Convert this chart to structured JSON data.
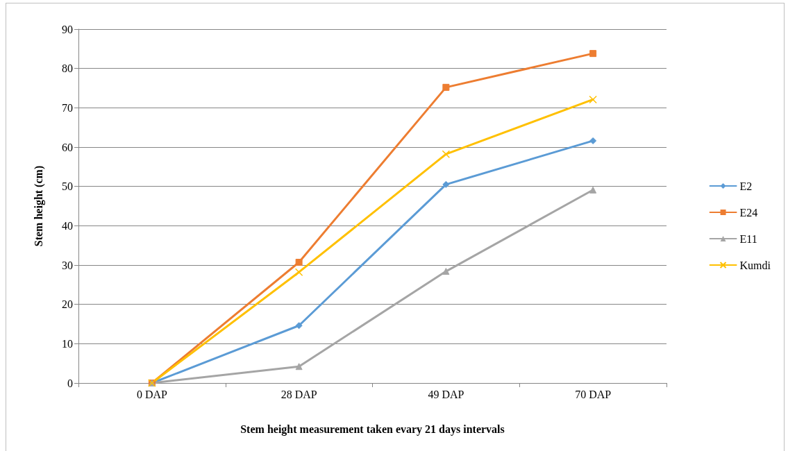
{
  "chart_data": {
    "type": "line",
    "xlabel": "Stem height measurement taken evary 21 days intervals",
    "ylabel": "Stem height (cm)",
    "categories": [
      "0 DAP",
      "28 DAP",
      "49 DAP",
      "70 DAP"
    ],
    "series": [
      {
        "name": "E2",
        "color": "#5b9bd5",
        "marker": "diamond",
        "values": [
          0,
          14.6,
          50.5,
          61.6
        ]
      },
      {
        "name": "E24",
        "color": "#ed7d31",
        "marker": "square",
        "values": [
          0,
          30.7,
          75.2,
          83.8
        ]
      },
      {
        "name": "E11",
        "color": "#a5a5a5",
        "marker": "triangle",
        "values": [
          0,
          4.2,
          28.4,
          49.1
        ]
      },
      {
        "name": "Kumdi",
        "color": "#ffc000",
        "marker": "cross",
        "values": [
          0,
          28.2,
          58.2,
          72.1
        ]
      }
    ],
    "ylim": [
      0,
      90
    ],
    "yticks": [
      0,
      10,
      20,
      30,
      40,
      50,
      60,
      70,
      80,
      90
    ],
    "grid": "y",
    "legend": "right",
    "line_style": "solid"
  }
}
